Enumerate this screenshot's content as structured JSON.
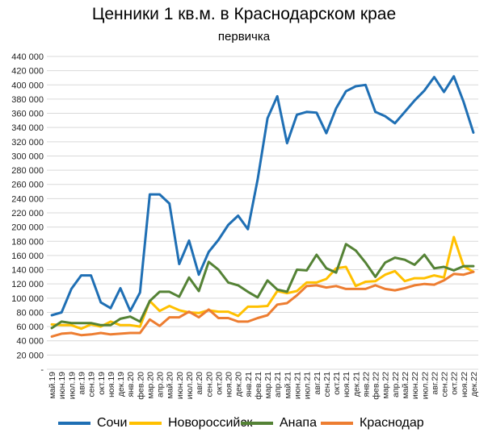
{
  "chart_data": {
    "type": "line",
    "title": "Ценники 1 кв.м. в Краснодарском крае",
    "subtitle": "первичка",
    "xlabel": "",
    "ylabel": "",
    "ylim": [
      0,
      440000
    ],
    "ytick_labels": [
      "-",
      "20 000",
      "40 000",
      "60 000",
      "80 000",
      "100 000",
      "120 000",
      "140 000",
      "160 000",
      "180 000",
      "200 000",
      "220 000",
      "240 000",
      "260 000",
      "280 000",
      "300 000",
      "320 000",
      "340 000",
      "360 000",
      "380 000",
      "400 000",
      "420 000",
      "440 000"
    ],
    "grid": true,
    "legend_position": "bottom",
    "categories": [
      "май.19",
      "июн.19",
      "июл.19",
      "авг.19",
      "сен.19",
      "окт.19",
      "ноя.19",
      "дек.19",
      "янв.20",
      "фев.20",
      "мар.20",
      "апр.20",
      "май.20",
      "июн.20",
      "июл.20",
      "авг.20",
      "сен.20",
      "окт.20",
      "ноя.20",
      "дек.20",
      "янв.21",
      "фев.21",
      "мар.21",
      "апр.21",
      "май.21",
      "июн.21",
      "июл.21",
      "авг.21",
      "сен.21",
      "окт.21",
      "ноя.21",
      "дек.21",
      "янв.22",
      "фев.22",
      "мар.22",
      "апр.22",
      "май.22",
      "июн.22",
      "июл.22",
      "авг.22",
      "сен.22",
      "окт.22",
      "ноя.22",
      "дек.22"
    ],
    "series": [
      {
        "name": "Сочи",
        "color": "#1f6fb4",
        "values": [
          76000,
          80000,
          113000,
          132000,
          132000,
          94000,
          86000,
          114000,
          82000,
          108000,
          246000,
          246000,
          233000,
          148000,
          181000,
          133000,
          165000,
          182000,
          203000,
          216000,
          197000,
          267000,
          353000,
          384000,
          318000,
          358000,
          362000,
          361000,
          332000,
          367000,
          391000,
          398000,
          400000,
          362000,
          356000,
          346000,
          362000,
          378000,
          392000,
          411000,
          390000,
          412000,
          376000,
          333000
        ]
      },
      {
        "name": "Новороссийск",
        "color": "#ffc000",
        "values": [
          63000,
          62000,
          62000,
          57000,
          63000,
          60000,
          67000,
          62000,
          62000,
          60000,
          96000,
          82000,
          89000,
          83000,
          80000,
          79000,
          83000,
          81000,
          81000,
          75000,
          88000,
          88000,
          89000,
          110000,
          107000,
          110000,
          122000,
          122000,
          127000,
          142000,
          144000,
          117000,
          123000,
          124000,
          133000,
          138000,
          124000,
          128000,
          128000,
          132000,
          129000,
          186000,
          145000,
          137000
        ]
      },
      {
        "name": "Анапа",
        "color": "#548235",
        "values": [
          58000,
          67000,
          65000,
          65000,
          65000,
          62000,
          62000,
          71000,
          74000,
          67000,
          96000,
          109000,
          109000,
          102000,
          129000,
          110000,
          151000,
          140000,
          122000,
          118000,
          109000,
          101000,
          125000,
          112000,
          109000,
          140000,
          139000,
          161000,
          142000,
          136000,
          176000,
          167000,
          150000,
          130000,
          150000,
          157000,
          154000,
          147000,
          161000,
          142000,
          144000,
          139000,
          145000,
          145000
        ]
      },
      {
        "name": "Краснодар",
        "color": "#ed7d31",
        "values": [
          46000,
          50000,
          51000,
          48000,
          49000,
          51000,
          49000,
          50000,
          51000,
          51000,
          70000,
          61000,
          73000,
          73000,
          81000,
          73000,
          84000,
          72000,
          72000,
          67000,
          67000,
          72000,
          76000,
          91000,
          93000,
          104000,
          117000,
          118000,
          115000,
          117000,
          113000,
          113000,
          113000,
          118000,
          113000,
          111000,
          114000,
          118000,
          120000,
          119000,
          125000,
          134000,
          133000,
          137000
        ]
      }
    ]
  }
}
